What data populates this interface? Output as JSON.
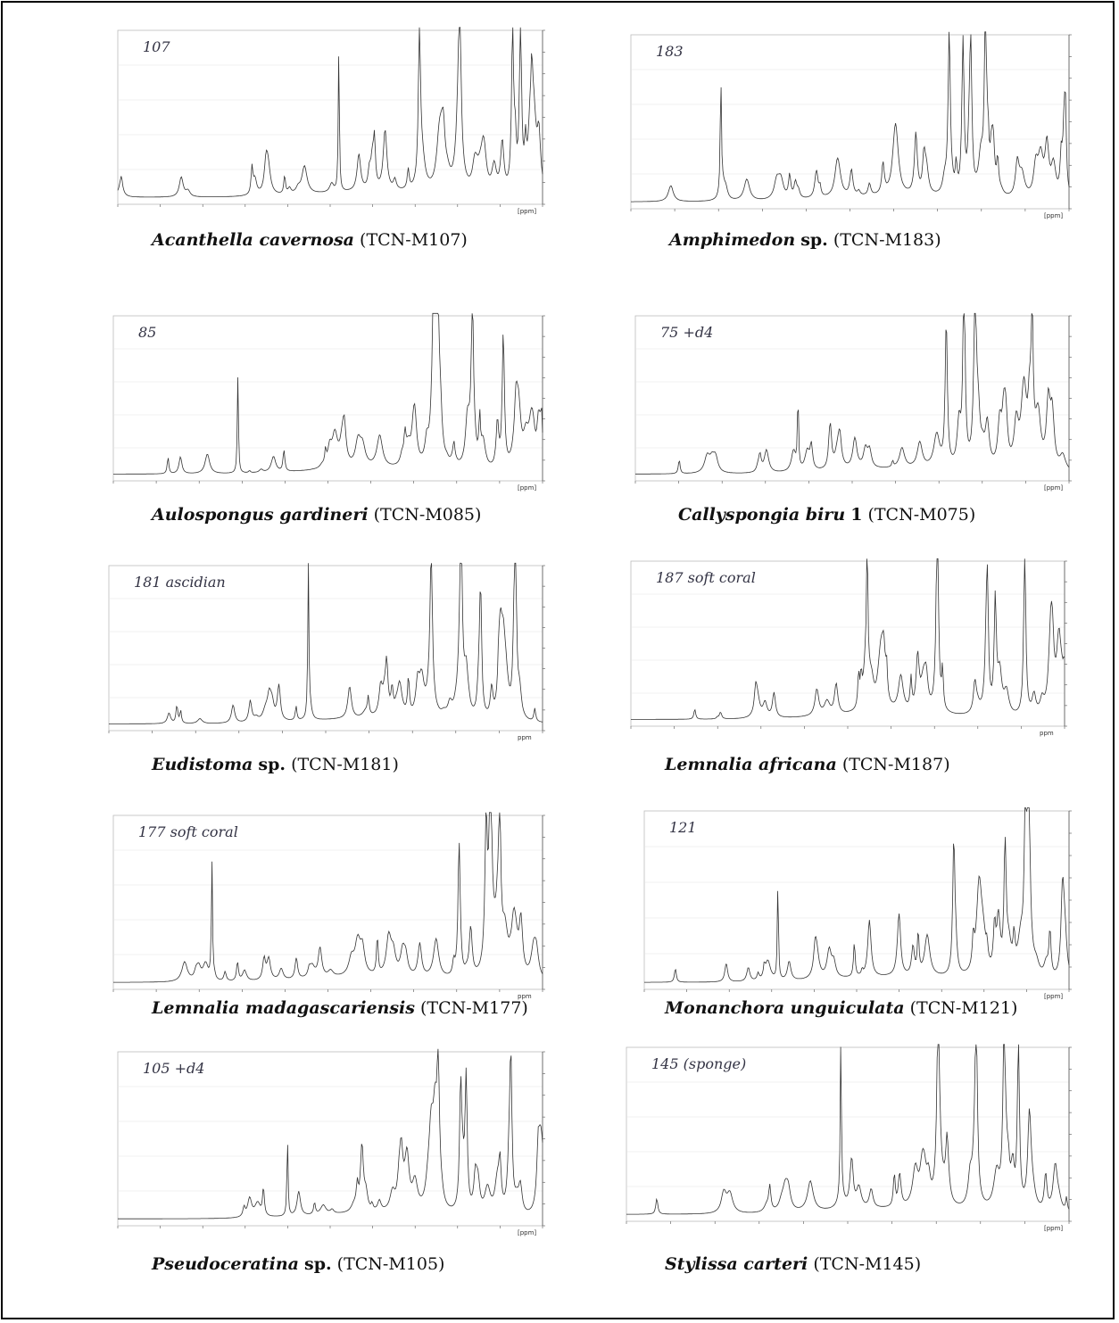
{
  "figure": {
    "panels": [
      {
        "species": "Acanthella cavernosa",
        "code": "(TCN-M107)",
        "annotation": "107",
        "unit": "[ppm]"
      },
      {
        "species": "Amphimedon",
        "qualifier": "sp.",
        "code": "(TCN-M183)",
        "annotation": "183",
        "unit": "[ppm]"
      },
      {
        "species": "Aulospongus gardineri",
        "code": "(TCN-M085)",
        "annotation": "85",
        "unit": "[ppm]"
      },
      {
        "species": "Callyspongia biru",
        "qualifier": "1",
        "code": "(TCN-M075)",
        "annotation": "75  +d4",
        "unit": "[ppm]"
      },
      {
        "species": "Eudistoma",
        "qualifier": "sp.",
        "code": "(TCN-M181)",
        "annotation": "181 ascidian",
        "unit": "ppm"
      },
      {
        "species": "Lemnalia africana",
        "code": "(TCN-M187)",
        "annotation": "187 soft coral",
        "unit": "ppm"
      },
      {
        "species": "Lemnalia madagascariensis",
        "code": "(TCN-M177)",
        "annotation": "177 soft coral",
        "unit": "ppm"
      },
      {
        "species": "Monanchora unguiculata",
        "code": "(TCN-M121)",
        "annotation": "121",
        "unit": "[ppm]"
      },
      {
        "species": "Pseudoceratina",
        "qualifier": "sp.",
        "code": "(TCN-M105)",
        "annotation": "105  +d4",
        "unit": "[ppm]"
      },
      {
        "species": "Stylissa carteri",
        "code": "(TCN-M145)",
        "annotation": "145 (sponge)",
        "unit": "[ppm]"
      }
    ]
  }
}
